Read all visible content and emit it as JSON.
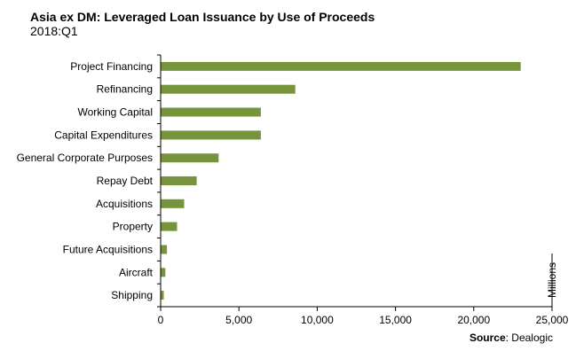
{
  "header": {
    "title": "Asia ex DM: Leveraged Loan Issuance by Use of Proceeds",
    "subtitle": "2018:Q1"
  },
  "source": {
    "label": "Source",
    "text": ": Dealogic"
  },
  "colors": {
    "bar": "#77933C",
    "axis": "#000000"
  },
  "chart_data": {
    "type": "bar",
    "orientation": "horizontal",
    "categories": [
      "Project Financing",
      "Refinancing",
      "Working Capital",
      "Capital Expenditures",
      "General Corporate Purposes",
      "Repay Debt",
      "Acquisitions",
      "Property",
      "Future Acquisitions",
      "Aircraft",
      "Shipping"
    ],
    "values": [
      23000,
      8600,
      6400,
      6400,
      3700,
      2300,
      1500,
      1050,
      400,
      300,
      200
    ],
    "xlim": [
      0,
      25000
    ],
    "xticks": [
      0,
      5000,
      10000,
      15000,
      20000,
      25000
    ],
    "xtick_labels": [
      "0",
      "5,000",
      "10,000",
      "15,000",
      "20,000",
      "25,000"
    ],
    "unit_label": "Millions",
    "grid": false
  }
}
